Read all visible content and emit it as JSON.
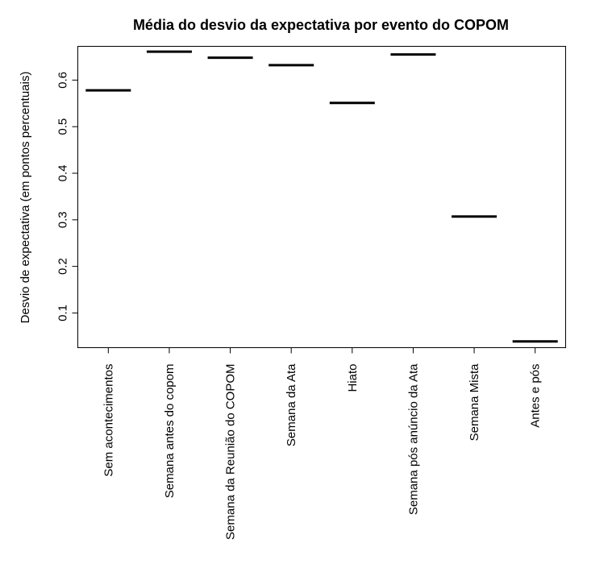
{
  "chart_data": {
    "type": "bar",
    "title": "Média do desvio da expectativa por evento do COPOM",
    "xlabel": "",
    "ylabel": "Desvio de expectativa (em pontos percentuais)",
    "categories": [
      "Sem acontecimentos",
      "Semana antes do copom",
      "Semana da Reunião do COPOM",
      "Semana da Ata",
      "Hiato",
      "Semana pós anúncio da Ata",
      "Semana Mista",
      "Antes e pós"
    ],
    "values": [
      0.578,
      0.661,
      0.648,
      0.632,
      0.551,
      0.655,
      0.307,
      0.039
    ],
    "ylim": [
      0.0255,
      0.6725
    ],
    "yticks": [
      0.1,
      0.2,
      0.3,
      0.4,
      0.5,
      0.6
    ],
    "ytick_labels": [
      "0.1",
      "0.2",
      "0.3",
      "0.4",
      "0.5",
      "0.6"
    ],
    "grid": false,
    "legend": "none"
  }
}
